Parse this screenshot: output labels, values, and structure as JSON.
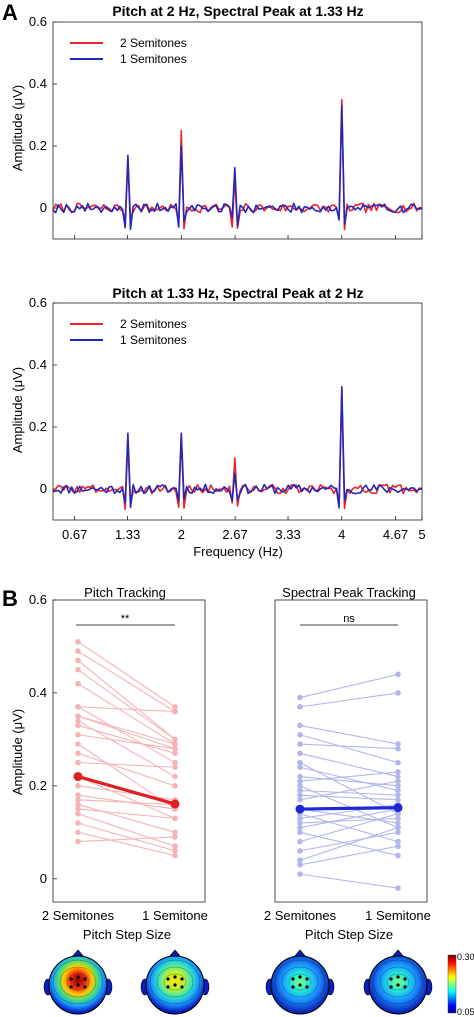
{
  "panel_labels": [
    "A",
    "B"
  ],
  "chart_data": [
    {
      "type": "line",
      "title": "Pitch at 2 Hz, Spectral Peak at 1.33 Hz",
      "xlabel": "",
      "ylabel": "Amplitude (μV)",
      "xlim": [
        0.4,
        5
      ],
      "ylim": [
        -0.1,
        0.6
      ],
      "x_ticks": [
        0.67,
        1.33,
        2,
        2.67,
        3.33,
        4,
        4.67,
        5
      ],
      "y_ticks": [
        0,
        0.2,
        0.4,
        0.6
      ],
      "legend": {
        "position": "top-left",
        "entries": [
          "2 Semitones",
          "1 Semitones"
        ]
      },
      "series": [
        {
          "name": "2 Semitones",
          "color": "#e8252a",
          "peaks": [
            {
              "x": 1.333,
              "y": 0.15
            },
            {
              "x": 2.0,
              "y": 0.25
            },
            {
              "x": 2.667,
              "y": 0.1
            },
            {
              "x": 4.0,
              "y": 0.35
            }
          ],
          "noise_seed": 7
        },
        {
          "name": "1 Semitones",
          "color": "#2327b8",
          "peaks": [
            {
              "x": 1.333,
              "y": 0.17
            },
            {
              "x": 2.0,
              "y": 0.2
            },
            {
              "x": 2.667,
              "y": 0.13
            },
            {
              "x": 4.0,
              "y": 0.33
            }
          ],
          "noise_seed": 19
        }
      ]
    },
    {
      "type": "line",
      "title": "Pitch at 1.33 Hz, Spectral Peak at 2 Hz",
      "xlabel": "Frequency (Hz)",
      "ylabel": "Amplitude (μV)",
      "xlim": [
        0.4,
        5
      ],
      "ylim": [
        -0.1,
        0.6
      ],
      "x_ticks": [
        0.67,
        1.33,
        2,
        2.67,
        3.33,
        4,
        4.67,
        5
      ],
      "x_tick_labels": [
        "0.67",
        "1.33",
        "2",
        "2.67",
        "3.33",
        "4",
        "4.67",
        "5"
      ],
      "y_ticks": [
        0,
        0.2,
        0.4,
        0.6
      ],
      "legend": {
        "position": "top-left",
        "entries": [
          "2 Semitones",
          "1 Semitones"
        ]
      },
      "series": [
        {
          "name": "2 Semitones",
          "color": "#e8252a",
          "peaks": [
            {
              "x": 1.333,
              "y": 0.16
            },
            {
              "x": 2.0,
              "y": 0.17
            },
            {
              "x": 2.667,
              "y": 0.1
            },
            {
              "x": 4.0,
              "y": 0.31
            }
          ],
          "noise_seed": 3
        },
        {
          "name": "1 Semitones",
          "color": "#2327b8",
          "peaks": [
            {
              "x": 1.333,
              "y": 0.18
            },
            {
              "x": 2.0,
              "y": 0.18
            },
            {
              "x": 2.667,
              "y": 0.05
            },
            {
              "x": 4.0,
              "y": 0.33
            }
          ],
          "noise_seed": 11
        }
      ]
    },
    {
      "type": "line",
      "title": "Pitch Tracking",
      "xlabel": "Pitch Step Size",
      "ylabel": "Amplitude (μV)",
      "categories": [
        "2 Semitones",
        "1 Semitone"
      ],
      "ylim": [
        -0.05,
        0.6
      ],
      "y_ticks": [
        0,
        0.2,
        0.4,
        0.6
      ],
      "significance": "**",
      "subject_color": "#f6b3b5",
      "mean_color": "#e01f23",
      "mean": [
        0.22,
        0.161
      ],
      "subjects": [
        [
          0.51,
          0.37
        ],
        [
          0.49,
          0.36
        ],
        [
          0.47,
          0.3
        ],
        [
          0.45,
          0.3
        ],
        [
          0.42,
          0.29
        ],
        [
          0.37,
          0.25
        ],
        [
          0.37,
          0.36
        ],
        [
          0.35,
          0.28
        ],
        [
          0.35,
          0.29
        ],
        [
          0.34,
          0.22
        ],
        [
          0.33,
          0.27
        ],
        [
          0.31,
          0.28
        ],
        [
          0.29,
          0.15
        ],
        [
          0.27,
          0.2
        ],
        [
          0.25,
          0.24
        ],
        [
          0.22,
          0.13
        ],
        [
          0.2,
          0.17
        ],
        [
          0.18,
          0.15
        ],
        [
          0.17,
          0.16
        ],
        [
          0.16,
          0.1
        ],
        [
          0.15,
          0.13
        ],
        [
          0.14,
          0.07
        ],
        [
          0.12,
          0.06
        ],
        [
          0.1,
          0.05
        ],
        [
          0.08,
          0.09
        ]
      ],
      "topographies": [
        {
          "category": "2 Semitones",
          "level": 0.28
        },
        {
          "category": "1 Semitone",
          "level": 0.18
        }
      ]
    },
    {
      "type": "line",
      "title": "Spectral Peak Tracking",
      "xlabel": "Pitch Step Size",
      "ylabel": "",
      "categories": [
        "2 Semitones",
        "1 Semitone"
      ],
      "ylim": [
        -0.05,
        0.6
      ],
      "significance": "ns",
      "subject_color": "#b3b6ec",
      "mean_color": "#1c28d4",
      "mean": [
        0.15,
        0.153
      ],
      "subjects": [
        [
          0.39,
          0.44
        ],
        [
          0.37,
          0.4
        ],
        [
          0.33,
          0.29
        ],
        [
          0.31,
          0.25
        ],
        [
          0.29,
          0.28
        ],
        [
          0.27,
          0.22
        ],
        [
          0.25,
          0.14
        ],
        [
          0.24,
          0.19
        ],
        [
          0.22,
          0.2
        ],
        [
          0.21,
          0.23
        ],
        [
          0.2,
          0.11
        ],
        [
          0.19,
          0.18
        ],
        [
          0.18,
          0.17
        ],
        [
          0.17,
          0.21
        ],
        [
          0.15,
          0.12
        ],
        [
          0.14,
          0.08
        ],
        [
          0.13,
          0.16
        ],
        [
          0.12,
          0.13
        ],
        [
          0.11,
          0.15
        ],
        [
          0.1,
          0.05
        ],
        [
          0.08,
          0.14
        ],
        [
          0.06,
          0.1
        ],
        [
          0.04,
          0.11
        ],
        [
          0.03,
          0.07
        ],
        [
          0.01,
          -0.02
        ]
      ],
      "topographies": [
        {
          "category": "2 Semitones",
          "level": 0.12
        },
        {
          "category": "1 Semitone",
          "level": 0.14
        }
      ]
    }
  ],
  "colorbar": {
    "min_label": "0.05",
    "max_label": "0.30",
    "colormap": "jet"
  }
}
